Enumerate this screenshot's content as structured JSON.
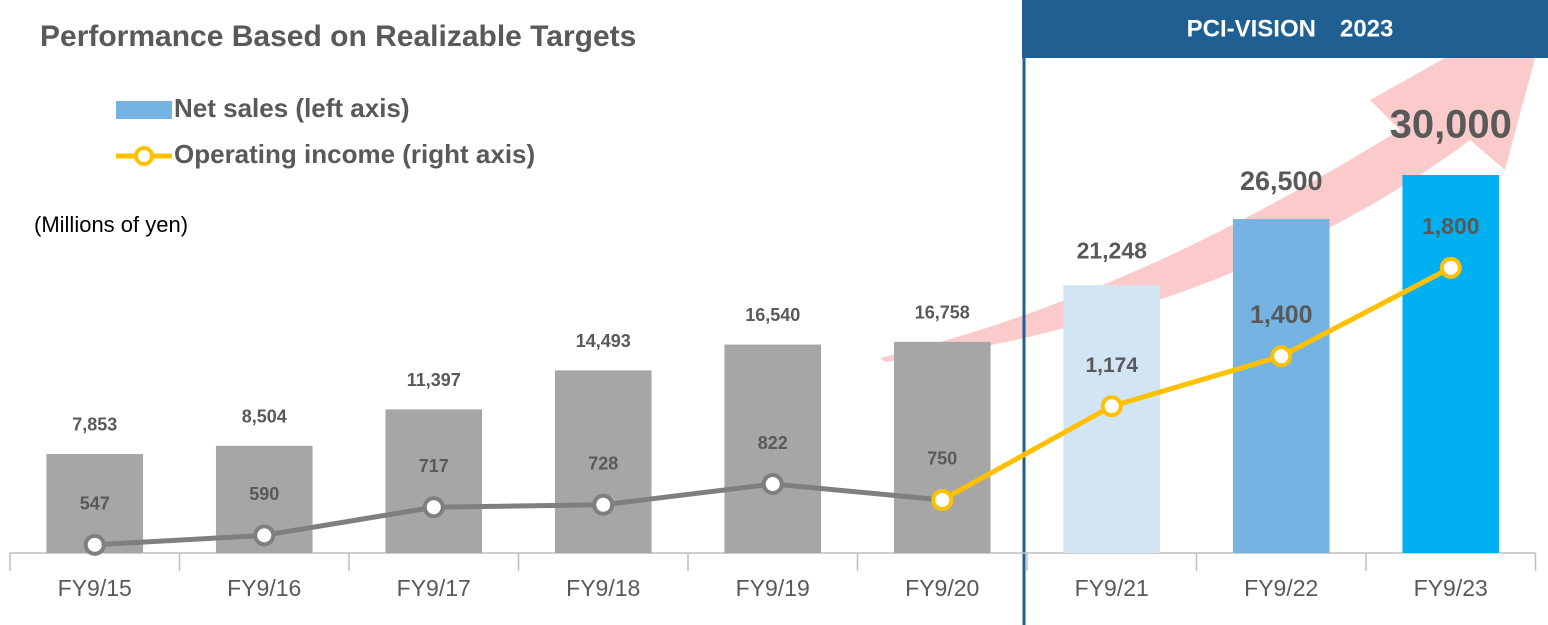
{
  "chart_data": {
    "type": "bar",
    "title": "Performance Based on Realizable Targets",
    "subtitle": "(Millions of yen)",
    "banner": "PCI-VISION　2023",
    "categories": [
      "FY9/15",
      "FY9/16",
      "FY9/17",
      "FY9/18",
      "FY9/19",
      "FY9/20",
      "FY9/21",
      "FY9/22",
      "FY9/23"
    ],
    "ylim": [
      0,
      30000
    ],
    "y2lim": [
      510,
      2220
    ],
    "legend": "top-left",
    "series": [
      {
        "name": "Net sales (left axis)",
        "type": "bar",
        "color": "#74b3e2",
        "colors": [
          "#a6a6a6",
          "#a6a6a6",
          "#a6a6a6",
          "#a6a6a6",
          "#a6a6a6",
          "#a6a6a6",
          "#d2e5f5",
          "#74b3e2",
          "#00b0f0"
        ],
        "values": [
          7853,
          8504,
          11397,
          14493,
          16540,
          16758,
          21248,
          26500,
          30000
        ],
        "value_labels": [
          "7,853",
          "8,504",
          "11,397",
          "14,493",
          "16,540",
          "16,758",
          "21,248",
          "26,500",
          "30,000"
        ]
      },
      {
        "name": "Operating income (right axis)",
        "type": "line",
        "axis": "y2",
        "color": "#ffc000",
        "colors": [
          "#7f7f7f",
          "#7f7f7f",
          "#7f7f7f",
          "#7f7f7f",
          "#7f7f7f",
          "#ffc000",
          "#ffc000",
          "#ffc000",
          "#ffc000"
        ],
        "values": [
          547,
          590,
          717,
          728,
          822,
          750,
          1174,
          1400,
          1800
        ],
        "value_labels": [
          "547",
          "590",
          "717",
          "728",
          "822",
          "750",
          "1,174",
          "1,400",
          "1,800"
        ]
      }
    ]
  }
}
